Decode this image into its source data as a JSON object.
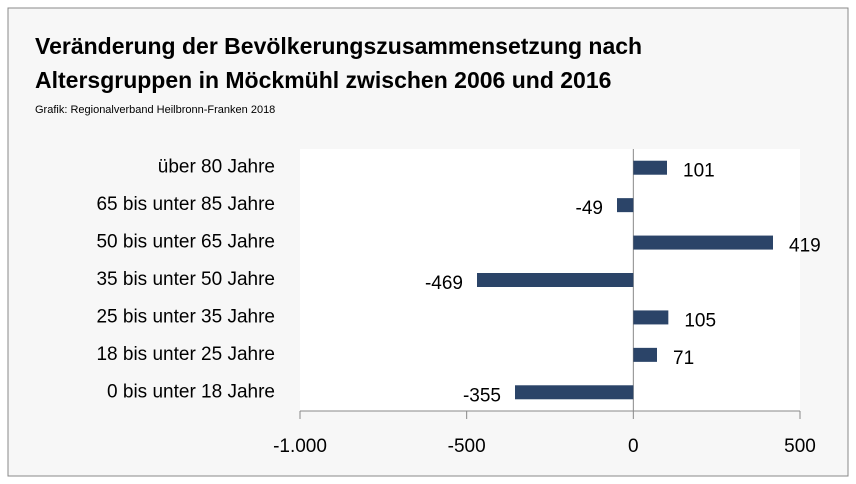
{
  "chart_data": {
    "type": "barh",
    "title": [
      "Veränderung der Bevölkerungszusammensetzung nach",
      "Altersgruppen in Möckmühl zwischen 2006 und 2016"
    ],
    "subtitle": "Grafik: Regionalverband Heilbronn-Franken 2018",
    "categories": [
      "über 80 Jahre",
      "65 bis unter 85 Jahre",
      "50 bis unter 65 Jahre",
      "35 bis unter 50 Jahre",
      "25 bis unter 35 Jahre",
      "18 bis unter 25 Jahre",
      "0 bis unter 18 Jahre"
    ],
    "values": [
      101,
      -49,
      419,
      -469,
      105,
      71,
      -355
    ],
    "color": "#2b4468",
    "xlim": [
      -1000,
      500
    ],
    "xticks": [
      {
        "value": -1000,
        "label": "-1.000"
      },
      -500,
      0,
      500
    ]
  }
}
